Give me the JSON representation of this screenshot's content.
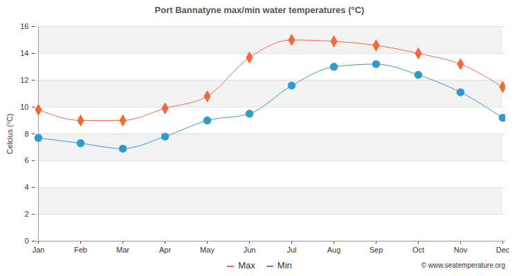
{
  "chart_data": {
    "type": "line",
    "title": "Port Bannatyne max/min water temperatures (°C)",
    "y_label": "Celcius (°C)",
    "caption": "© www.seatemperature.org",
    "categories": [
      "Jan",
      "Feb",
      "Mar",
      "Apr",
      "May",
      "Jun",
      "Jul",
      "Aug",
      "Sep",
      "Oct",
      "Nov",
      "Dec"
    ],
    "series": [
      {
        "name": "Max",
        "color": "#f4693a",
        "marker": "diamond",
        "values": [
          9.8,
          9.0,
          9.0,
          9.9,
          10.8,
          13.7,
          15.0,
          14.9,
          14.6,
          14.0,
          13.2,
          11.5
        ]
      },
      {
        "name": "Min",
        "color": "#3399cc",
        "marker": "circle",
        "values": [
          7.7,
          7.3,
          6.9,
          7.8,
          9.0,
          9.5,
          11.6,
          13.0,
          13.2,
          12.4,
          11.1,
          9.2
        ]
      }
    ],
    "ylim": [
      0,
      16
    ],
    "yticks": [
      0,
      2,
      4,
      6,
      8,
      10,
      12,
      14,
      16
    ],
    "grid": true,
    "legend": "bottom"
  }
}
